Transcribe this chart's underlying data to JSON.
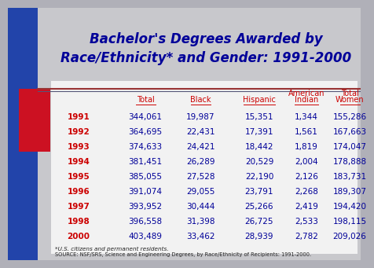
{
  "title_line1": "Bachelor's Degrees Awarded by",
  "title_line2": "Race/Ethnicity* and Gender: 1991-2000",
  "outer_bg": "#b0b0b8",
  "table_bg": "#f0f0f0",
  "left_blue": "#2244aa",
  "left_red": "#cc1122",
  "divider_color": "#884444",
  "header_color": "#cc0000",
  "year_color": "#cc0000",
  "data_color": "#000099",
  "title_color": "#000099",
  "years": [
    "1991",
    "1992",
    "1993",
    "1994",
    "1995",
    "1996",
    "1997",
    "1998",
    "2000"
  ],
  "col_headers_line1": [
    "",
    "",
    "",
    "American",
    "Total"
  ],
  "col_headers_line2": [
    "Total",
    "Black",
    "Hispanic",
    "Indian",
    "Women"
  ],
  "data": [
    [
      "344,061",
      "19,987",
      "15,351",
      "1,344",
      "155,286"
    ],
    [
      "364,695",
      "22,431",
      "17,391",
      "1,561",
      "167,663"
    ],
    [
      "374,633",
      "24,421",
      "18,442",
      "1,819",
      "174,047"
    ],
    [
      "381,451",
      "26,289",
      "20,529",
      "2,004",
      "178,888"
    ],
    [
      "385,055",
      "27,528",
      "22,190",
      "2,126",
      "183,731"
    ],
    [
      "391,074",
      "29,055",
      "23,791",
      "2,268",
      "189,307"
    ],
    [
      "393,952",
      "30,444",
      "25,266",
      "2,419",
      "194,420"
    ],
    [
      "396,558",
      "31,398",
      "26,725",
      "2,533",
      "198,115"
    ],
    [
      "403,489",
      "33,462",
      "28,939",
      "2,782",
      "209,026"
    ]
  ],
  "footnote1": "*U.S. citizens and permanent residents.",
  "footnote2": "SOURCE: NSF/SRS, Science and Engineering Degrees, by Race/Ethnicity of Recipients: 1991-2000."
}
